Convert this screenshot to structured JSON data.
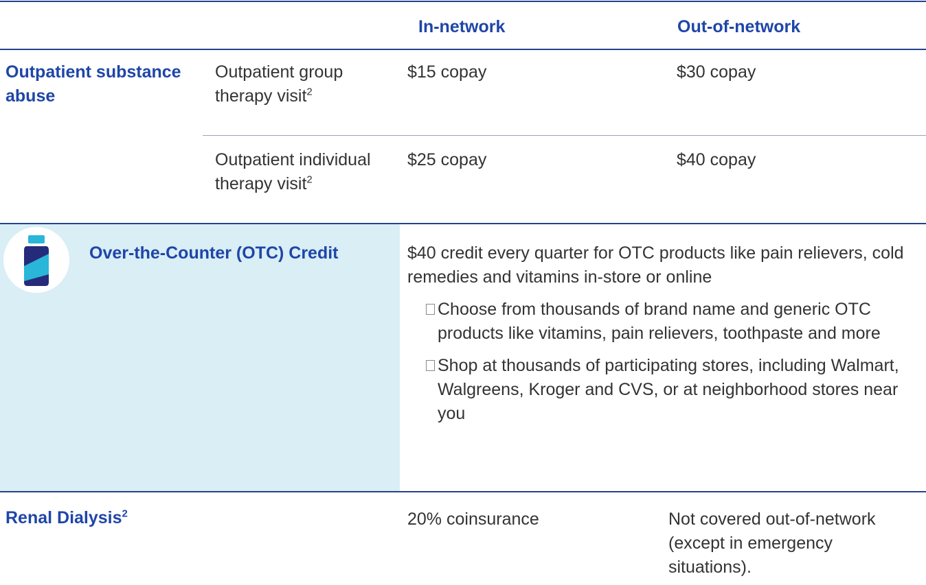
{
  "table": {
    "header": [
      "In-network",
      "Out-of-network"
    ],
    "rows": [
      {
        "category": "Outpatient substance abuse",
        "items": [
          {
            "service": "Outpatient group therapy visit",
            "note": "2",
            "in_network": "$15 copay",
            "out_of_network": "$30 copay"
          },
          {
            "service": "Outpatient individual therapy visit",
            "note": "2",
            "in_network": "$25 copay",
            "out_of_network": "$40 copay"
          }
        ]
      },
      {
        "category": "Over-the-Counter (OTC) Credit",
        "description": "$40 credit every quarter for OTC products like pain relievers, cold remedies and vitamins in-store or online",
        "bullets": [
          "Choose from thousands of brand name and generic OTC products like vitamins, pain relievers, toothpaste and more",
          "Shop at thousands of participating stores, including Walmart, Walgreens, Kroger and CVS, or at neighborhood stores near you"
        ]
      },
      {
        "category": "Renal Dialysis",
        "note": "2",
        "in_network": "20% coinsurance",
        "out_of_network": "Not covered out-of-network (except in emergency situations)."
      }
    ]
  }
}
